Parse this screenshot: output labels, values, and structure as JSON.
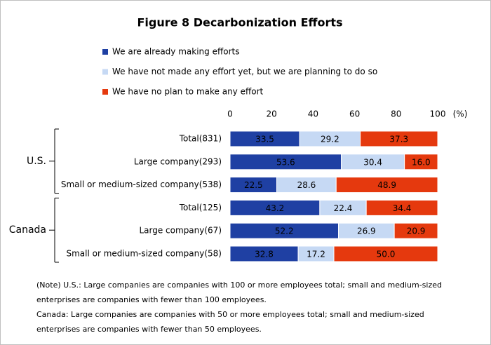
{
  "chart_data": {
    "type": "stacked-bar-horizontal",
    "title": "Figure 8 Decarbonization Efforts",
    "x_unit": "(%)",
    "xlim": [
      0,
      100
    ],
    "xticks": [
      0,
      20,
      40,
      60,
      80,
      100
    ],
    "groups": [
      {
        "name": "U.S.",
        "categories": [
          "Total(831)",
          "Large company(293)",
          "Small or medium-sized company(538)"
        ]
      },
      {
        "name": "Canada",
        "categories": [
          "Total(125)",
          "Large company(67)",
          "Small or medium-sized company(58)"
        ]
      }
    ],
    "series": [
      {
        "name": "We are already making efforts",
        "color": "#1f40a3",
        "values": [
          33.5,
          53.6,
          22.5,
          43.2,
          52.2,
          32.8
        ],
        "value_labels": [
          "33.5",
          "53.6",
          "22.5",
          "43.2",
          "52.2",
          "32.8"
        ]
      },
      {
        "name": "We have not made any effort yet, but we are planning to do so",
        "color": "#c6d9f4",
        "values": [
          29.2,
          30.4,
          28.6,
          22.4,
          26.9,
          17.2
        ],
        "value_labels": [
          "29.2",
          "30.4",
          "28.6",
          "22.4",
          "26.9",
          "17.2"
        ]
      },
      {
        "name": "We have no plan to make any effort",
        "color": "#e5390e",
        "values": [
          37.3,
          16.0,
          48.9,
          34.4,
          20.9,
          50.0
        ],
        "value_labels": [
          "37.3",
          "16.0",
          "48.9",
          "34.4",
          "20.9",
          "50.0"
        ]
      }
    ],
    "notes": [
      "(Note) U.S.: Large companies are companies with 100 or more employees total; small and medium-sized enterprises are companies with fewer than 100 employees.",
      "Canada: Large companies are companies with 50 or more employees total; small and medium-sized enterprises are companies with fewer than 50 employees."
    ]
  }
}
